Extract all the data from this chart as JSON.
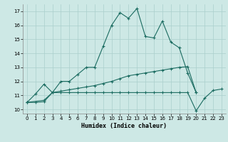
{
  "xlabel": "Humidex (Indice chaleur)",
  "xlim": [
    -0.5,
    23.5
  ],
  "ylim": [
    9.7,
    17.5
  ],
  "yticks": [
    10,
    11,
    12,
    13,
    14,
    15,
    16,
    17
  ],
  "xticks": [
    0,
    1,
    2,
    3,
    4,
    5,
    6,
    7,
    8,
    9,
    10,
    11,
    12,
    13,
    14,
    15,
    16,
    17,
    18,
    19,
    20,
    21,
    22,
    23
  ],
  "bg_color": "#cde8e5",
  "grid_color": "#aacfcc",
  "line_color": "#1a6b60",
  "line1_x": [
    0,
    1,
    2,
    3,
    4,
    5,
    6,
    7,
    8,
    9,
    10,
    11,
    12,
    13,
    14,
    15,
    16,
    17,
    18,
    19,
    20
  ],
  "line1_y": [
    10.5,
    11.1,
    11.8,
    11.2,
    12.0,
    12.0,
    12.5,
    13.0,
    13.0,
    14.5,
    16.0,
    16.9,
    16.5,
    17.2,
    15.2,
    15.1,
    16.3,
    14.8,
    14.4,
    12.6,
    11.2
  ],
  "line2_x": [
    0,
    2,
    3,
    4,
    5,
    6,
    7,
    8,
    9,
    10,
    11,
    12,
    13,
    14,
    15,
    16,
    17,
    18,
    19,
    20
  ],
  "line2_y": [
    10.5,
    10.65,
    11.2,
    11.3,
    11.4,
    11.5,
    11.6,
    11.7,
    11.85,
    12.0,
    12.2,
    12.4,
    12.5,
    12.6,
    12.7,
    12.8,
    12.9,
    13.0,
    13.05,
    11.2
  ],
  "line3_x": [
    0,
    1,
    2,
    3,
    4,
    5,
    6,
    7,
    8,
    9,
    10,
    11,
    12,
    13,
    14,
    15,
    16,
    17,
    18,
    19,
    20,
    21,
    22,
    23
  ],
  "line3_y": [
    10.5,
    10.5,
    10.55,
    11.2,
    11.2,
    11.2,
    11.2,
    11.2,
    11.2,
    11.2,
    11.2,
    11.2,
    11.2,
    11.2,
    11.2,
    11.2,
    11.2,
    11.2,
    11.2,
    11.2,
    9.9,
    10.8,
    11.35,
    11.45
  ]
}
